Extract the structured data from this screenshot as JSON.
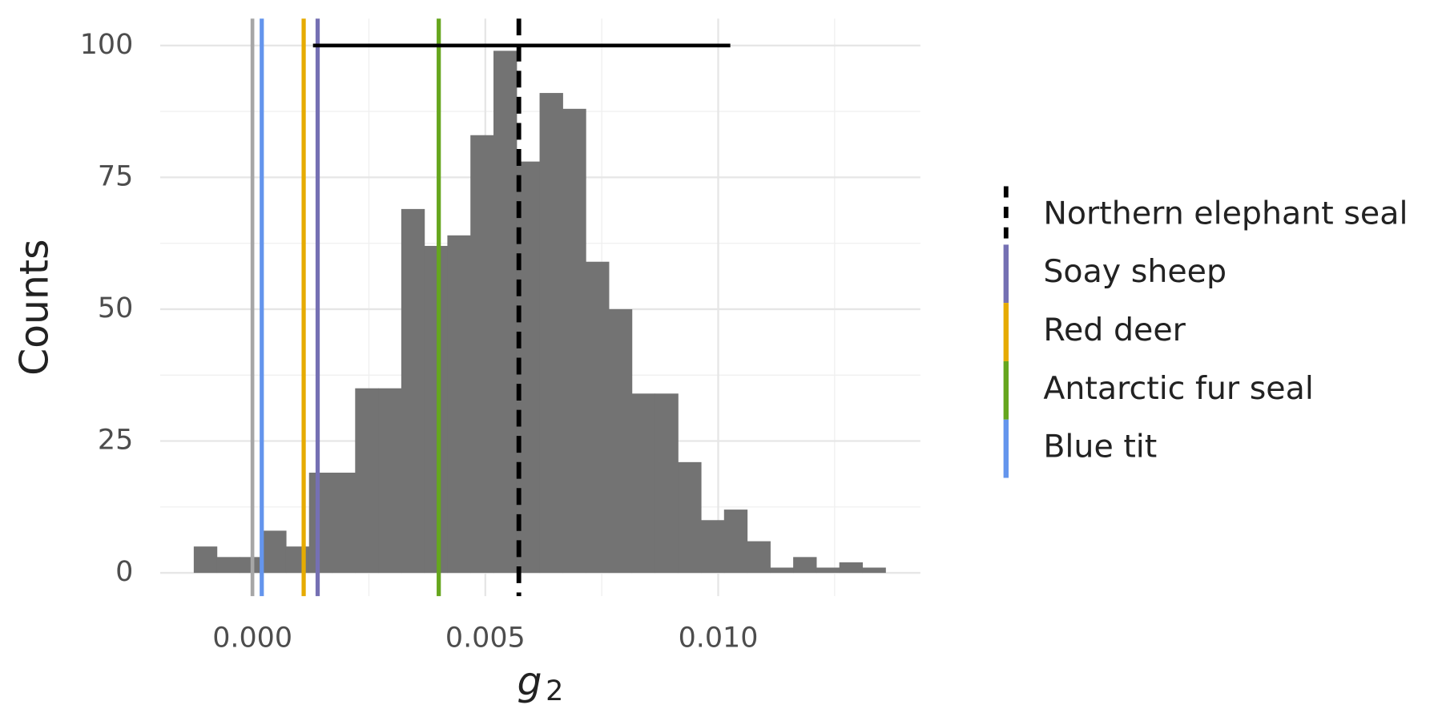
{
  "chart_data": {
    "type": "histogram",
    "xlabel": {
      "text": "g",
      "subscript": "2"
    },
    "ylabel": "Counts",
    "bins": [
      -0.00126,
      -0.000765,
      -0.00027,
      0.000225,
      0.00072,
      0.001215,
      0.00171,
      0.002205,
      0.0027,
      0.003195,
      0.00369,
      0.004185,
      0.00468,
      0.005175,
      0.00567,
      0.006165,
      0.00666,
      0.007155,
      0.00765,
      0.008145,
      0.00864,
      0.009135,
      0.00963,
      0.010125,
      0.01062,
      0.011115,
      0.01161,
      0.012105,
      0.0126,
      0.013095,
      0.01359
    ],
    "values": [
      5,
      3,
      3,
      8,
      5,
      19,
      19,
      35,
      35,
      69,
      62,
      64,
      83,
      99,
      78,
      91,
      88,
      59,
      50,
      34,
      34,
      21,
      10,
      12,
      6,
      1,
      3,
      1,
      2,
      1
    ],
    "color": "#737373",
    "xlim": [
      -0.00198,
      0.01434
    ],
    "ylim": [
      -4.42,
      105.1
    ],
    "xticks": [
      {
        "value": 0,
        "label": "0.000"
      },
      {
        "value": 0.005,
        "label": "0.005"
      },
      {
        "value": 0.01,
        "label": "0.010"
      }
    ],
    "minor_xticks": [
      0.0025,
      0.0075,
      0.0125
    ],
    "yticks": [
      0,
      25,
      50,
      75,
      100
    ],
    "minor_yticks": [
      12.5,
      37.5,
      62.5,
      87.5
    ],
    "grid": true,
    "reference_line": {
      "x": 0,
      "color": "#a6a6a6"
    },
    "lines": [
      {
        "name": "Northern elephant seal",
        "color": "#000000",
        "x": 0.00572,
        "dashed": true
      },
      {
        "name": "Soay sheep",
        "color": "#7570b3",
        "x": 0.0014
      },
      {
        "name": "Red deer",
        "color": "#e6ab02",
        "x": 0.0011
      },
      {
        "name": "Antarctic fur seal",
        "color": "#66a61e",
        "x": 0.004
      },
      {
        "name": "Blue tit",
        "color": "#6495ed",
        "x": 0.0002
      }
    ],
    "interval": {
      "y": 100,
      "x": [
        0.0013,
        0.01026
      ],
      "color": "#000000"
    },
    "legend": "right"
  }
}
